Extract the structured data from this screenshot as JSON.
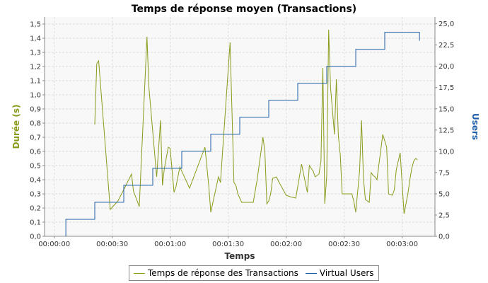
{
  "chart_data": {
    "type": "line",
    "title": "Temps de réponse moyen (Transactions)",
    "xlabel": "Temps",
    "ylabel": "Durée (s)",
    "y2label": "Users",
    "x_tick_labels": [
      "00:00:00",
      "00:00:30",
      "00:01:00",
      "00:01:30",
      "00:02:00",
      "00:02:30",
      "00:03:00"
    ],
    "x_tick_seconds": [
      0,
      30,
      60,
      90,
      120,
      150,
      180
    ],
    "xlim": [
      -5,
      197
    ],
    "ylim": [
      0,
      1.55
    ],
    "y_ticks": [
      "0,0",
      "0,1",
      "0,2",
      "0,3",
      "0,4",
      "0,5",
      "0,6",
      "0,7",
      "0,8",
      "0,9",
      "1,0",
      "1,1",
      "1,2",
      "1,3",
      "1,4",
      "1,5"
    ],
    "y_tick_values": [
      0,
      0.1,
      0.2,
      0.3,
      0.4,
      0.5,
      0.6,
      0.7,
      0.8,
      0.9,
      1.0,
      1.1,
      1.2,
      1.3,
      1.4,
      1.5
    ],
    "y2lim": [
      0,
      25.8
    ],
    "y2_ticks": [
      "0,0",
      "2,5",
      "5,0",
      "7,5",
      "10,0",
      "12,5",
      "15,0",
      "17,5",
      "20,0",
      "22,5",
      "25,0"
    ],
    "y2_tick_values": [
      0,
      2.5,
      5,
      7.5,
      10,
      12.5,
      15,
      17.5,
      20,
      22.5,
      25
    ],
    "grid": true,
    "legend_position": "bottom",
    "series": [
      {
        "name": "Temps de réponse des Transactions",
        "axis": "left",
        "color": "#8a9a1a",
        "x": [
          21,
          22,
          23,
          29,
          33,
          36,
          40,
          41,
          44,
          48,
          49,
          53,
          55,
          56,
          57,
          59,
          60,
          62,
          63,
          65,
          70,
          78,
          80,
          81,
          85,
          86,
          91,
          93,
          94,
          95,
          97,
          103,
          105,
          108,
          109,
          110,
          111,
          112,
          113,
          115,
          116,
          120,
          122,
          125,
          128,
          131,
          132,
          134,
          135,
          137,
          138,
          139,
          140,
          141,
          142,
          143,
          145,
          146,
          147,
          148,
          149,
          150,
          151,
          152,
          153,
          154,
          155,
          156,
          158,
          159,
          160,
          161,
          162,
          163,
          164,
          165,
          166,
          167,
          170,
          172,
          173,
          175,
          176,
          177,
          179,
          181,
          183,
          184,
          185,
          186,
          187,
          188
        ],
        "y": [
          0.79,
          1.22,
          1.24,
          0.19,
          0.25,
          0.33,
          0.44,
          0.32,
          0.21,
          1.41,
          1.05,
          0.42,
          0.82,
          0.36,
          0.48,
          0.63,
          0.62,
          0.31,
          0.35,
          0.49,
          0.34,
          0.63,
          0.35,
          0.17,
          0.42,
          0.38,
          1.37,
          0.38,
          0.36,
          0.3,
          0.24,
          0.24,
          0.4,
          0.7,
          0.6,
          0.23,
          0.25,
          0.3,
          0.41,
          0.42,
          0.39,
          0.29,
          0.28,
          0.27,
          0.51,
          0.31,
          0.5,
          0.46,
          0.42,
          0.44,
          0.53,
          1.19,
          0.23,
          0.43,
          1.46,
          1.05,
          0.72,
          1.11,
          0.71,
          0.58,
          0.3,
          0.3,
          0.3,
          0.3,
          0.3,
          0.3,
          0.25,
          0.17,
          0.46,
          0.82,
          0.41,
          0.26,
          0.25,
          0.24,
          0.45,
          0.43,
          0.42,
          0.4,
          0.72,
          0.63,
          0.3,
          0.29,
          0.33,
          0.47,
          0.59,
          0.16,
          0.3,
          0.4,
          0.48,
          0.53,
          0.55,
          0.54
        ]
      },
      {
        "name": "Virtual Users",
        "axis": "right",
        "color": "#1f5ea8",
        "x": [
          6,
          6,
          21,
          21,
          36,
          36,
          51,
          51,
          66,
          66,
          81,
          81,
          96,
          96,
          111,
          111,
          126,
          126,
          141,
          141,
          156,
          156,
          171,
          171,
          189,
          189
        ],
        "y": [
          0,
          2,
          2,
          4,
          4,
          6,
          6,
          8,
          8,
          10,
          10,
          12,
          12,
          14,
          14,
          16,
          16,
          18,
          18,
          20,
          20,
          22,
          22,
          24,
          24,
          23
        ]
      }
    ]
  }
}
